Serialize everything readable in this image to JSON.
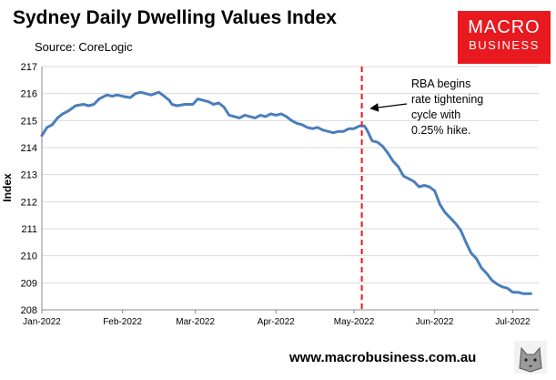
{
  "header": {
    "title": "Sydney Daily Dwelling Values Index",
    "subtitle": "Source: CoreLogic"
  },
  "logo": {
    "line1": "MACRO",
    "line2": "BUSINESS",
    "color": "#e8191f"
  },
  "footer": {
    "url": "www.macrobusiness.com.au",
    "icon": "wolf-icon"
  },
  "colors": {
    "line": "#4a7ebb",
    "marker": "#e8191f",
    "grid": "#d9d9d9"
  },
  "chart_data": {
    "type": "line",
    "title": "Sydney Daily Dwelling Values Index",
    "xlabel": "",
    "ylabel": "Index",
    "ylim": [
      208,
      217
    ],
    "yticks": [
      208,
      209,
      210,
      211,
      212,
      213,
      214,
      215,
      216,
      217
    ],
    "xlim": [
      0,
      191
    ],
    "xtick_labels": [
      {
        "day": 0,
        "label": "Jan-2022"
      },
      {
        "day": 31,
        "label": "Feb-2022"
      },
      {
        "day": 59,
        "label": "Mar-2022"
      },
      {
        "day": 90,
        "label": "Apr-2022"
      },
      {
        "day": 120,
        "label": "May-2022"
      },
      {
        "day": 151,
        "label": "Jun-2022"
      },
      {
        "day": 181,
        "label": "Jul-2022"
      }
    ],
    "grid": "horizontal",
    "series": [
      {
        "name": "Sydney Daily Dwelling Values Index",
        "x": [
          0,
          2,
          4,
          6,
          8,
          10,
          13,
          16,
          18,
          20,
          22,
          25,
          27,
          29,
          31,
          34,
          36,
          38,
          40,
          42,
          45,
          47,
          49,
          50,
          52,
          55,
          58,
          60,
          62,
          64,
          66,
          68,
          70,
          72,
          74,
          76,
          78,
          80,
          82,
          84,
          86,
          88,
          90,
          92,
          94,
          96,
          98,
          100,
          102,
          104,
          106,
          108,
          110,
          112,
          114,
          116,
          118,
          120,
          122,
          124,
          125,
          127,
          129,
          131,
          133,
          135,
          137,
          139,
          141,
          143,
          145,
          147,
          149,
          151,
          153,
          155,
          157,
          159,
          161,
          163,
          165,
          167,
          169,
          171,
          173,
          175,
          177,
          179,
          181,
          183,
          185,
          187,
          188
        ],
        "y": [
          214.45,
          214.75,
          214.85,
          215.1,
          215.25,
          215.35,
          215.55,
          215.6,
          215.55,
          215.6,
          215.8,
          215.95,
          215.9,
          215.95,
          215.9,
          215.85,
          216.0,
          216.05,
          216.0,
          215.95,
          216.05,
          215.9,
          215.75,
          215.6,
          215.55,
          215.6,
          215.6,
          215.8,
          215.75,
          215.7,
          215.6,
          215.65,
          215.5,
          215.2,
          215.15,
          215.1,
          215.2,
          215.15,
          215.1,
          215.2,
          215.15,
          215.25,
          215.2,
          215.25,
          215.15,
          215.0,
          214.9,
          214.85,
          214.75,
          214.7,
          214.75,
          214.65,
          214.6,
          214.55,
          214.6,
          214.6,
          214.7,
          214.7,
          214.8,
          214.8,
          214.65,
          214.25,
          214.2,
          214.05,
          213.8,
          213.5,
          213.3,
          212.95,
          212.85,
          212.75,
          212.55,
          212.6,
          212.55,
          212.4,
          211.9,
          211.6,
          211.4,
          211.2,
          210.95,
          210.5,
          210.1,
          209.9,
          209.55,
          209.35,
          209.1,
          208.95,
          208.85,
          208.8,
          208.65,
          208.65,
          208.6,
          208.6,
          208.6
        ]
      }
    ],
    "reference_line": {
      "day": 123,
      "style": "dashed",
      "color": "#e8191f"
    },
    "annotation": {
      "lines": [
        "RBA begins",
        "rate tightening",
        "cycle with",
        "0.25% hike."
      ],
      "arrow_to_day": 124
    }
  }
}
